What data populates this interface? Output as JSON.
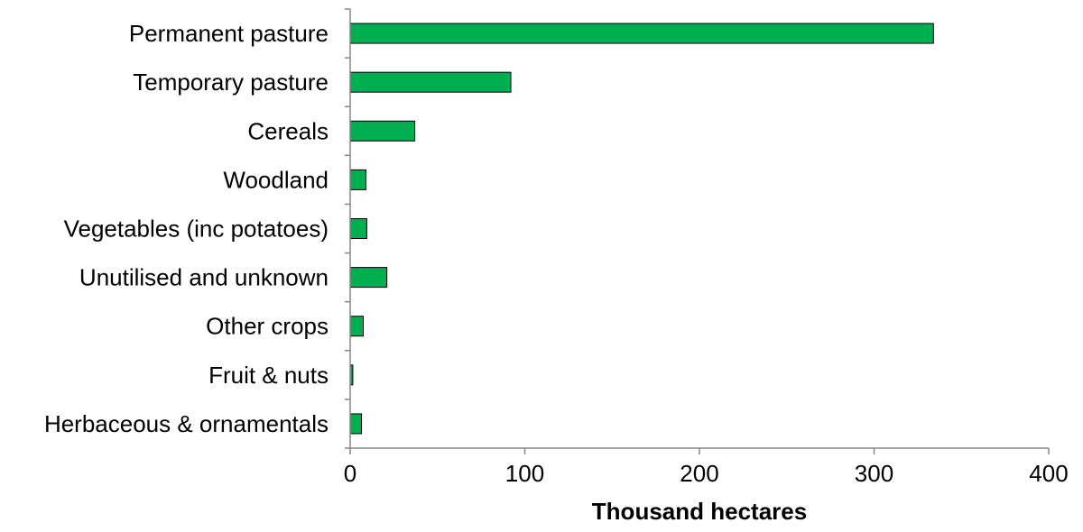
{
  "chart_data": {
    "type": "bar",
    "orientation": "horizontal",
    "title": "",
    "xlabel": "Thousand hectares",
    "ylabel": "",
    "xlim": [
      0,
      400
    ],
    "x_ticks": [
      0,
      100,
      200,
      300,
      400
    ],
    "grid": false,
    "legend": "none",
    "bar_color": "#00b050",
    "bar_edge_color": "#000000",
    "categories": [
      "Permanent pasture",
      "Temporary pasture",
      "Cereals",
      "Woodland",
      "Vegetables (inc potatoes)",
      "Unutilised and unknown",
      "Other crops",
      "Fruit & nuts",
      "Herbaceous & ornamentals"
    ],
    "values": [
      334,
      92,
      37,
      9,
      9.5,
      21,
      7.5,
      1.5,
      6.5
    ]
  }
}
